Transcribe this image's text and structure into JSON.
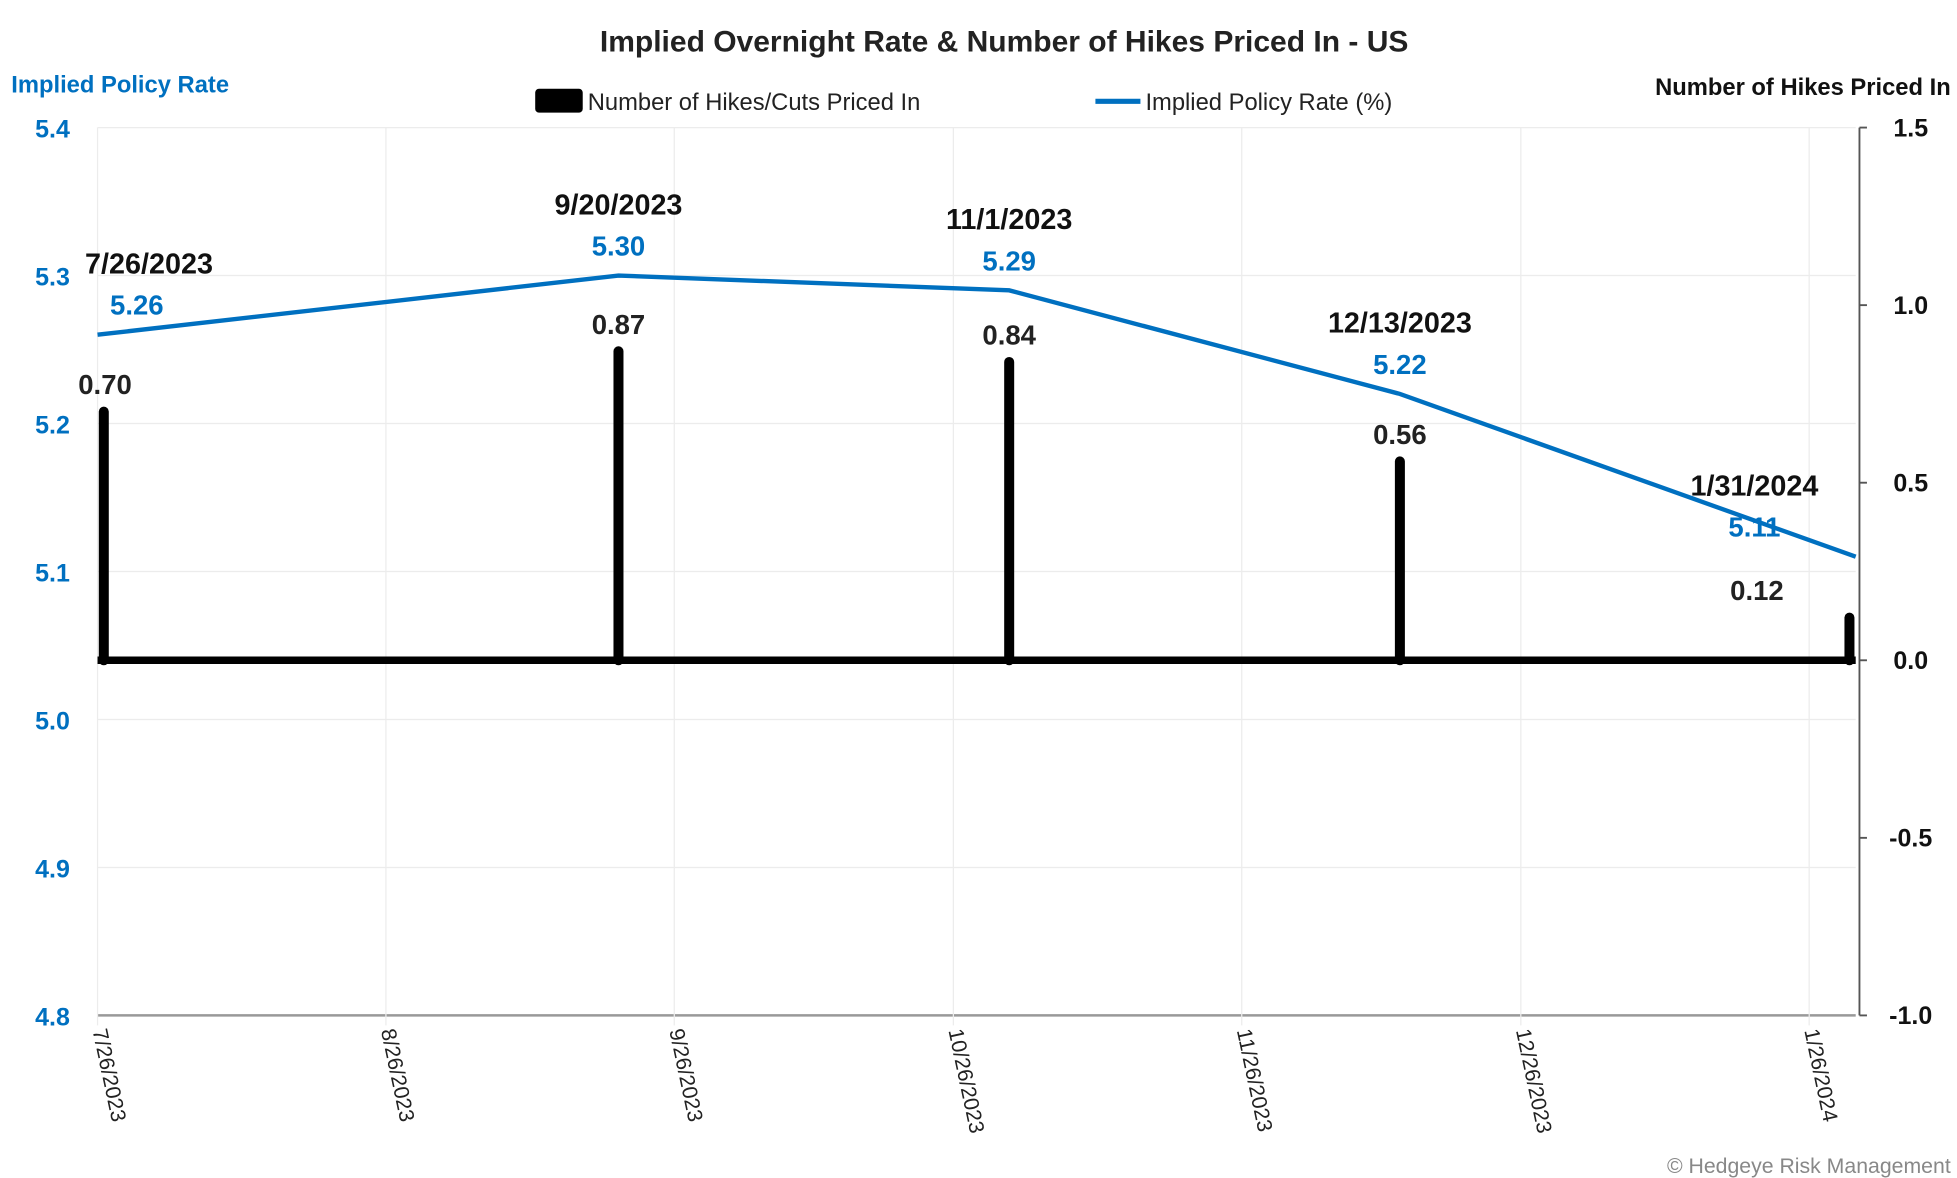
{
  "chart_data": {
    "type": "bar+line",
    "title": "Implied Overnight Rate & Number of Hikes Priced In - US",
    "y_left_label": "Implied Policy Rate",
    "y_right_label": "Number of Hikes Priced In",
    "y_left_lim": [
      4.8,
      5.4
    ],
    "y_left_ticks": [
      "5.4",
      "5.3",
      "5.2",
      "5.1",
      "5.0",
      "4.9",
      "4.8"
    ],
    "y_right_lim": [
      -1.0,
      1.5
    ],
    "y_right_ticks": [
      "1.5",
      "1.0",
      "0.5",
      "0.0",
      "-0.5",
      "-1.0"
    ],
    "x_lim": [
      "2023-07-26",
      "2024-01-31"
    ],
    "x_ticks": [
      {
        "date": "2023-07-26",
        "label": "7/26/2023"
      },
      {
        "date": "2023-08-26",
        "label": "8/26/2023"
      },
      {
        "date": "2023-09-26",
        "label": "9/26/2023"
      },
      {
        "date": "2023-10-26",
        "label": "10/26/2023"
      },
      {
        "date": "2023-11-26",
        "label": "11/26/2023"
      },
      {
        "date": "2023-12-26",
        "label": "12/26/2023"
      },
      {
        "date": "2024-01-26",
        "label": "1/26/2024"
      }
    ],
    "grid": true,
    "legend_position": "top-center",
    "legend": [
      "Number of Hikes/Cuts Priced In",
      "Implied Policy Rate (%)"
    ],
    "colors": {
      "bars": "#000000",
      "line": "#0070C0",
      "left_axis": "#0070C0"
    },
    "points": [
      {
        "date": "2023-07-26",
        "date_label": "7/26/2023",
        "rate": 5.26,
        "rate_label": "5.26",
        "hikes": 0.7,
        "hikes_label": "0.70"
      },
      {
        "date": "2023-09-20",
        "date_label": "9/20/2023",
        "rate": 5.3,
        "rate_label": "5.30",
        "hikes": 0.87,
        "hikes_label": "0.87"
      },
      {
        "date": "2023-11-01",
        "date_label": "11/1/2023",
        "rate": 5.29,
        "rate_label": "5.29",
        "hikes": 0.84,
        "hikes_label": "0.84"
      },
      {
        "date": "2023-12-13",
        "date_label": "12/13/2023",
        "rate": 5.22,
        "rate_label": "5.22",
        "hikes": 0.56,
        "hikes_label": "0.56"
      },
      {
        "date": "2024-01-31",
        "date_label": "1/31/2024",
        "rate": 5.11,
        "rate_label": "5.11",
        "hikes": 0.12,
        "hikes_label": "0.12"
      }
    ]
  },
  "footer": {
    "copyright": "© Hedgeye Risk Management"
  }
}
